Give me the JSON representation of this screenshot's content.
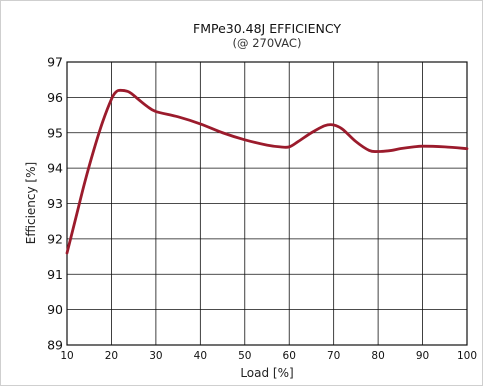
{
  "chart_data": {
    "type": "line",
    "title": "FMPe30.48J EFFICIENCY",
    "subtitle": "(@ 270VAC)",
    "xlabel": "Load [%]",
    "ylabel": "Efficiency [%]",
    "xlim": [
      10,
      100
    ],
    "ylim": [
      89,
      97
    ],
    "xticks": [
      "10",
      "20",
      "30",
      "40",
      "50",
      "60",
      "70",
      "80",
      "90",
      "100"
    ],
    "yticks": [
      "89",
      "90",
      "91",
      "92",
      "93",
      "94",
      "95",
      "96",
      "97"
    ],
    "grid": true,
    "series": [
      {
        "color": "#9b1b2c",
        "x": [
          10,
          12,
          14,
          16,
          18,
          20,
          21,
          22,
          24,
          26,
          28,
          30,
          35,
          40,
          45,
          50,
          55,
          58,
          60,
          62,
          65,
          68,
          70,
          72,
          75,
          78,
          80,
          83,
          85,
          88,
          90,
          95,
          100
        ],
        "y": [
          91.6,
          92.6,
          93.6,
          94.5,
          95.3,
          95.95,
          96.15,
          96.2,
          96.15,
          95.95,
          95.75,
          95.6,
          95.45,
          95.25,
          95.0,
          94.8,
          94.65,
          94.6,
          94.6,
          94.75,
          95.0,
          95.2,
          95.22,
          95.1,
          94.75,
          94.5,
          94.47,
          94.5,
          94.55,
          94.6,
          94.62,
          94.6,
          94.55
        ]
      }
    ]
  }
}
